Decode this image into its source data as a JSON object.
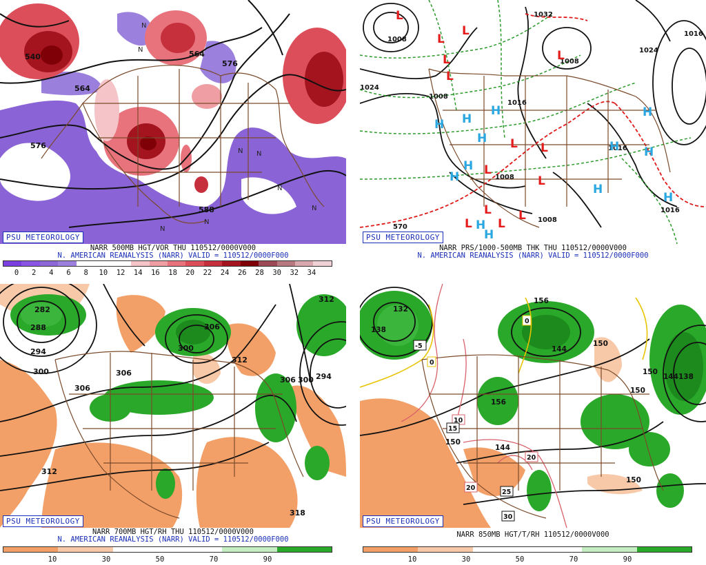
{
  "org_badge": "PSU METEOROLOGY",
  "panels": [
    {
      "title": "NARR 500MB HGT/VOR THU  110512/0000V000",
      "subtitle": "N. AMERICAN REANALYSIS (NARR) VALID = 110512/0000F000",
      "colorbar": {
        "ticks": [
          "0",
          "2",
          "4",
          "6",
          "8",
          "10",
          "12",
          "14",
          "16",
          "18",
          "20",
          "22",
          "24",
          "26",
          "28",
          "30",
          "32",
          "34"
        ],
        "colors": [
          "#7b3fe0",
          "#8a55e4",
          "#8f68d8",
          "#9d80dd",
          "#ffffff",
          "#ffffff",
          "#ffffff",
          "#f4c4c8",
          "#ef9ea4",
          "#e8737c",
          "#dc4f5a",
          "#c5303c",
          "#a3141f",
          "#800008",
          "#9c4a55",
          "#b87880",
          "#d8a8ae",
          "#f0d2d6"
        ]
      },
      "contour_labels": [
        "540",
        "564",
        "576",
        "564",
        "576",
        "588"
      ],
      "marker_labels": [
        "N",
        "N",
        "N",
        "N",
        "N",
        "N",
        "N",
        "N"
      ]
    },
    {
      "title": "NARR PRS/1000-500MB THK THU  110512/0000V000",
      "subtitle": "N. AMERICAN REANALYSIS (NARR) VALID = 110512/0000F000",
      "contour_labels": [
        "1032",
        "1008",
        "1016",
        "1024",
        "1008",
        "1024",
        "1008",
        "1016",
        "1016",
        "1008",
        "1008",
        "1016",
        "570"
      ],
      "low_marker": "L",
      "high_marker": "H"
    },
    {
      "title": "NARR 700MB HGT/RH THU  110512/0000V000",
      "subtitle": "N. AMERICAN REANALYSIS (NARR) VALID = 110512/0000F000",
      "colorbar": {
        "ticks": [
          "10",
          "30",
          "50",
          "70",
          "90"
        ],
        "colors": [
          "#f3a068",
          "#f8c9a8",
          "#ffffff",
          "#ffffff",
          "#c5eec2",
          "#2aa82a"
        ]
      },
      "contour_labels": [
        "282",
        "288",
        "294",
        "300",
        "306",
        "300",
        "306",
        "306",
        "312",
        "312",
        "306",
        "300",
        "294",
        "312",
        "318"
      ]
    },
    {
      "title": "NARR 850MB HGT/T/RH 110512/0000V000",
      "subtitle": "",
      "colorbar": {
        "ticks": [
          "10",
          "30",
          "50",
          "70",
          "90"
        ],
        "colors": [
          "#f3a068",
          "#f8c9a8",
          "#ffffff",
          "#ffffff",
          "#c5eec2",
          "#2aa82a"
        ]
      },
      "contour_labels": [
        "132",
        "138",
        "156",
        "150",
        "144",
        "144",
        "150",
        "156",
        "150",
        "144",
        "150",
        "150",
        "138",
        "0",
        "-5",
        "0",
        "10",
        "15",
        "20",
        "20",
        "25",
        "30"
      ]
    }
  ]
}
